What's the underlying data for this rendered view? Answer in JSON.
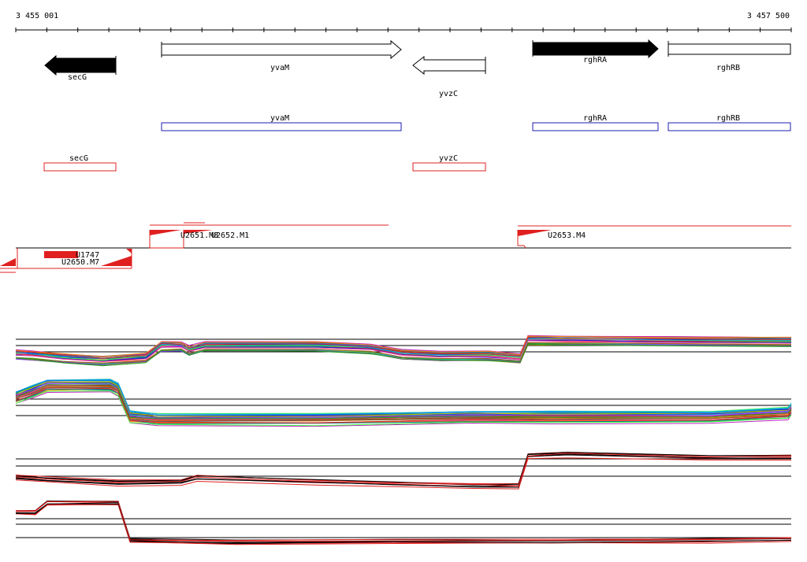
{
  "ruler": {
    "start_label": "3 455 001",
    "end_label": "3 457 500"
  },
  "genes": [
    {
      "name": "secG",
      "strand": "-",
      "filled": true
    },
    {
      "name": "yvaM",
      "strand": "+",
      "filled": false
    },
    {
      "name": "yvzC",
      "strand": "-",
      "filled": false
    },
    {
      "name": "rghRA",
      "strand": "+",
      "filled": true
    },
    {
      "name": "rghRB",
      "strand": "+",
      "filled": false
    }
  ],
  "forward_features": [
    {
      "name": "yvaM"
    },
    {
      "name": "rghRA"
    },
    {
      "name": "rghRB"
    }
  ],
  "reverse_features": [
    {
      "name": "secG"
    },
    {
      "name": "yvzC"
    }
  ],
  "transcription_units": [
    {
      "name": "U2651.M8"
    },
    {
      "name": "U2652.M1"
    },
    {
      "name": "U2653.M4"
    },
    {
      "name": "U1747"
    },
    {
      "name": "U2650.M7"
    }
  ],
  "colors": {
    "forward_box": "#1c1cb0",
    "reverse_box": "#e02020",
    "tu_line": "#e02020",
    "baseline": "#000000"
  }
}
